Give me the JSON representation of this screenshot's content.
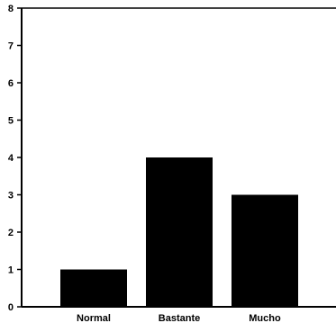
{
  "chart_data": {
    "type": "bar",
    "title": "",
    "xlabel": "",
    "ylabel": "",
    "categories": [
      "Normal",
      "Bastante",
      "Mucho"
    ],
    "values": [
      1,
      4,
      3
    ],
    "ylim": [
      0,
      8
    ],
    "yticks": [
      "0",
      "1",
      "2",
      "3",
      "4",
      "5",
      "6",
      "7",
      "8"
    ],
    "grid": false,
    "bar_color": "#000000",
    "axis_color": "#000000"
  }
}
